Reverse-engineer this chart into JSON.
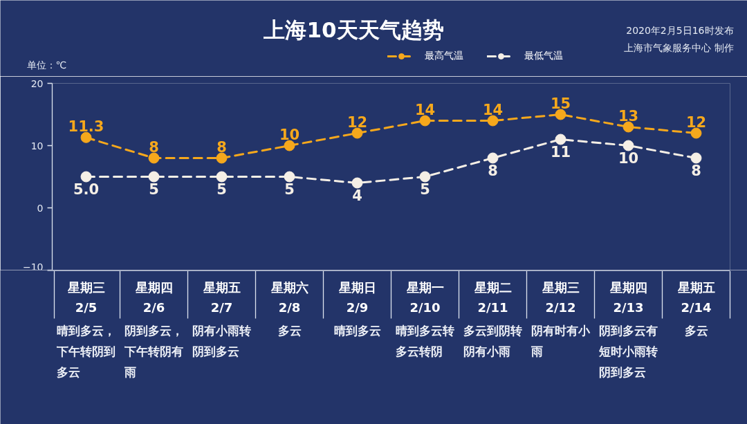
{
  "chart_data": {
    "type": "line",
    "title": "上海10天天气趋势",
    "ylabel": "单位：℃",
    "categories": [
      "星期三\n2/5",
      "星期四\n2/6",
      "星期五\n2/7",
      "星期六\n2/8",
      "星期日\n2/9",
      "星期一\n2/10",
      "星期二\n2/11",
      "星期三\n2/12",
      "星期四\n2/13",
      "星期五\n2/14"
    ],
    "series": [
      {
        "name": "最高气温",
        "color": "#f6a81c",
        "values": [
          11.3,
          8,
          8,
          10,
          12,
          14,
          14,
          15,
          13,
          12
        ],
        "value_labels": [
          "11.3",
          "8",
          "8",
          "10",
          "12",
          "14",
          "14",
          "15",
          "13",
          "12"
        ]
      },
      {
        "name": "最低气温",
        "color": "#f5efe6",
        "values": [
          5.0,
          5,
          5,
          5,
          4,
          5,
          8,
          11,
          10,
          8
        ],
        "value_labels": [
          "5.0",
          "5",
          "5",
          "5",
          "4",
          "5",
          "8",
          "11",
          "10",
          "8"
        ]
      }
    ],
    "ylim": [
      -10,
      20
    ],
    "yticks": [
      -10,
      0,
      10,
      20
    ],
    "legend": "top",
    "marker": "circle",
    "line_style": "dashed",
    "annotations": [
      "2020年2月5日16时发布",
      "上海市气象服务中心 制作",
      "晴到多云，下午转阴到多云",
      "阴到多云，下午转阴有雨",
      "阴有小雨转阴到多云",
      "多云",
      "晴到多云",
      "晴到多云转多云转阴",
      "多云到阴转阴有小雨",
      "阴有时有小雨",
      "阴到多云有短时小雨转阴到多云",
      "多云"
    ]
  }
}
